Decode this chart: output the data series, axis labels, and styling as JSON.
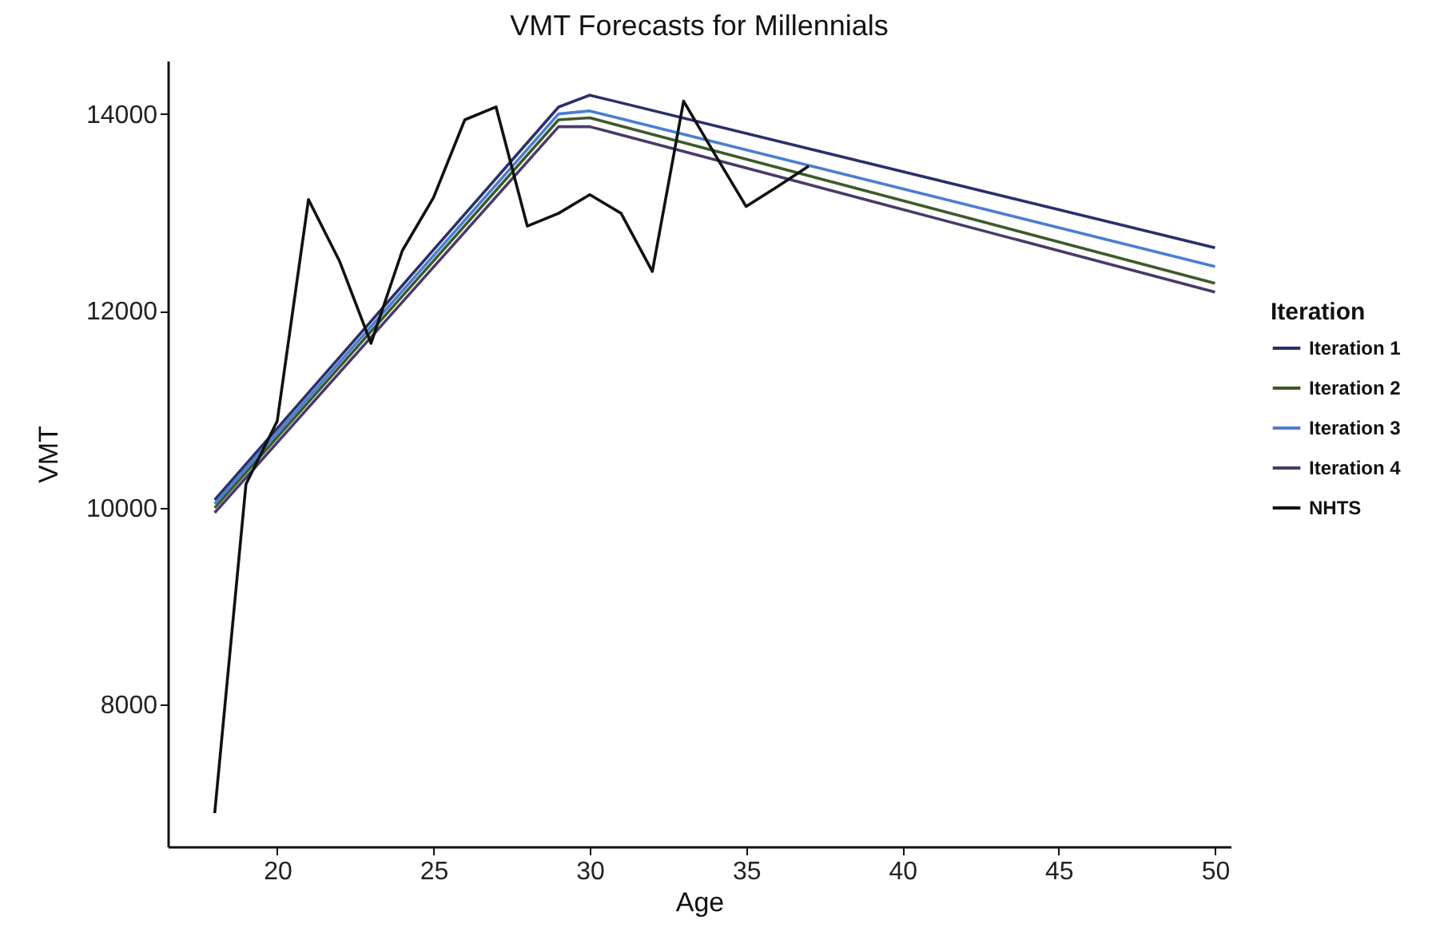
{
  "chart_data": {
    "type": "line",
    "title": "VMT Forecasts for Millennials",
    "xlabel": "Age",
    "ylabel": "VMT",
    "legend_title": "Iteration",
    "xlim": [
      16.5,
      50.5
    ],
    "xticks": [
      20,
      25,
      30,
      35,
      40,
      45,
      50
    ],
    "ylim": [
      6560,
      14540
    ],
    "yticks": [
      8000,
      10000,
      12000,
      14000
    ],
    "grid": false,
    "legend": "right",
    "marker": "none",
    "line_style": "solid",
    "series": [
      {
        "name": "Iteration 1",
        "color": "#2b2f6b",
        "x": [
          18,
          29,
          30,
          50
        ],
        "values": [
          10080,
          14070,
          14190,
          12640
        ]
      },
      {
        "name": "Iteration 2",
        "color": "#3d5a2a",
        "x": [
          18,
          29,
          30,
          50
        ],
        "values": [
          10000,
          13940,
          13960,
          12280
        ]
      },
      {
        "name": "Iteration 3",
        "color": "#4a7fd0",
        "x": [
          18,
          29,
          30,
          50
        ],
        "values": [
          10040,
          14000,
          14030,
          12450
        ]
      },
      {
        "name": "Iteration 4",
        "color": "#4a3a6a",
        "x": [
          18,
          29,
          30,
          50
        ],
        "values": [
          9950,
          13870,
          13870,
          12190
        ]
      },
      {
        "name": "NHTS",
        "color": "#111111",
        "x": [
          18,
          19,
          20,
          21,
          22,
          23,
          24,
          25,
          26,
          27,
          28,
          29,
          30,
          31,
          32,
          33,
          34,
          35,
          36,
          37
        ],
        "values": [
          6900,
          10240,
          10880,
          13130,
          12500,
          11670,
          12610,
          13150,
          13940,
          14070,
          12860,
          12990,
          13180,
          12990,
          12400,
          14130,
          13590,
          13060,
          13260,
          13470
        ]
      }
    ]
  }
}
